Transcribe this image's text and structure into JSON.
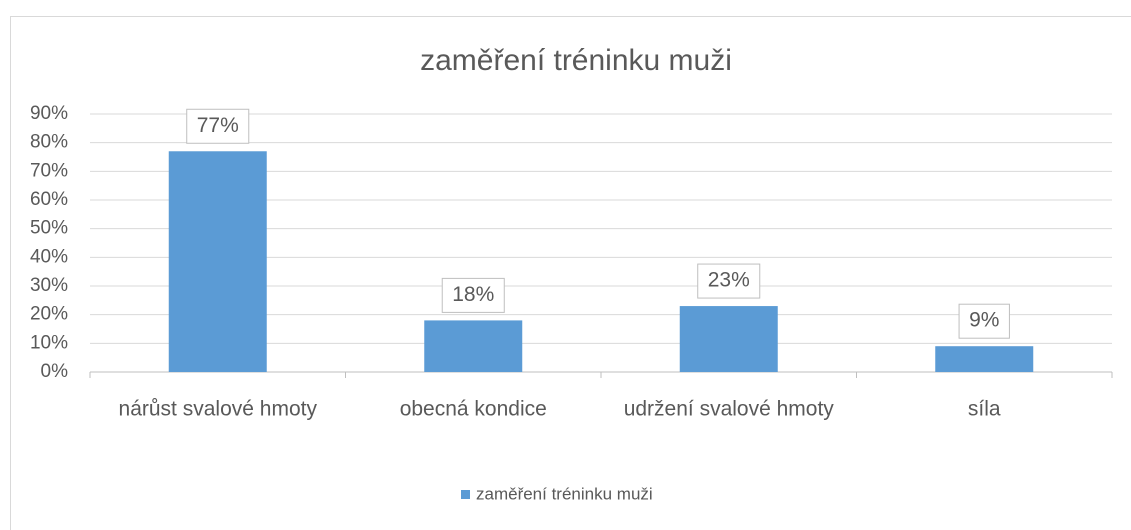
{
  "chart_data": {
    "type": "bar",
    "title": "zaměření tréninku muži",
    "categories": [
      "nárůst svalové hmoty",
      "obecná kondice",
      "udržení svalové hmoty",
      "síla"
    ],
    "series": [
      {
        "name": "zaměření tréninku muži",
        "color": "#5b9bd5",
        "values": [
          77,
          18,
          23,
          9
        ],
        "value_labels": [
          "77%",
          "18%",
          "23%",
          "9%"
        ]
      }
    ],
    "ylim": [
      0,
      90
    ],
    "yticks": [
      {
        "value": 0,
        "label": "0%"
      },
      {
        "value": 10,
        "label": "10%"
      },
      {
        "value": 20,
        "label": "20%"
      },
      {
        "value": 30,
        "label": "30%"
      },
      {
        "value": 40,
        "label": "40%"
      },
      {
        "value": 50,
        "label": "50%"
      },
      {
        "value": 60,
        "label": "60%"
      },
      {
        "value": 70,
        "label": "70%"
      },
      {
        "value": 80,
        "label": "80%"
      },
      {
        "value": 90,
        "label": "90%"
      }
    ],
    "grid": true,
    "legend": "bottom"
  }
}
